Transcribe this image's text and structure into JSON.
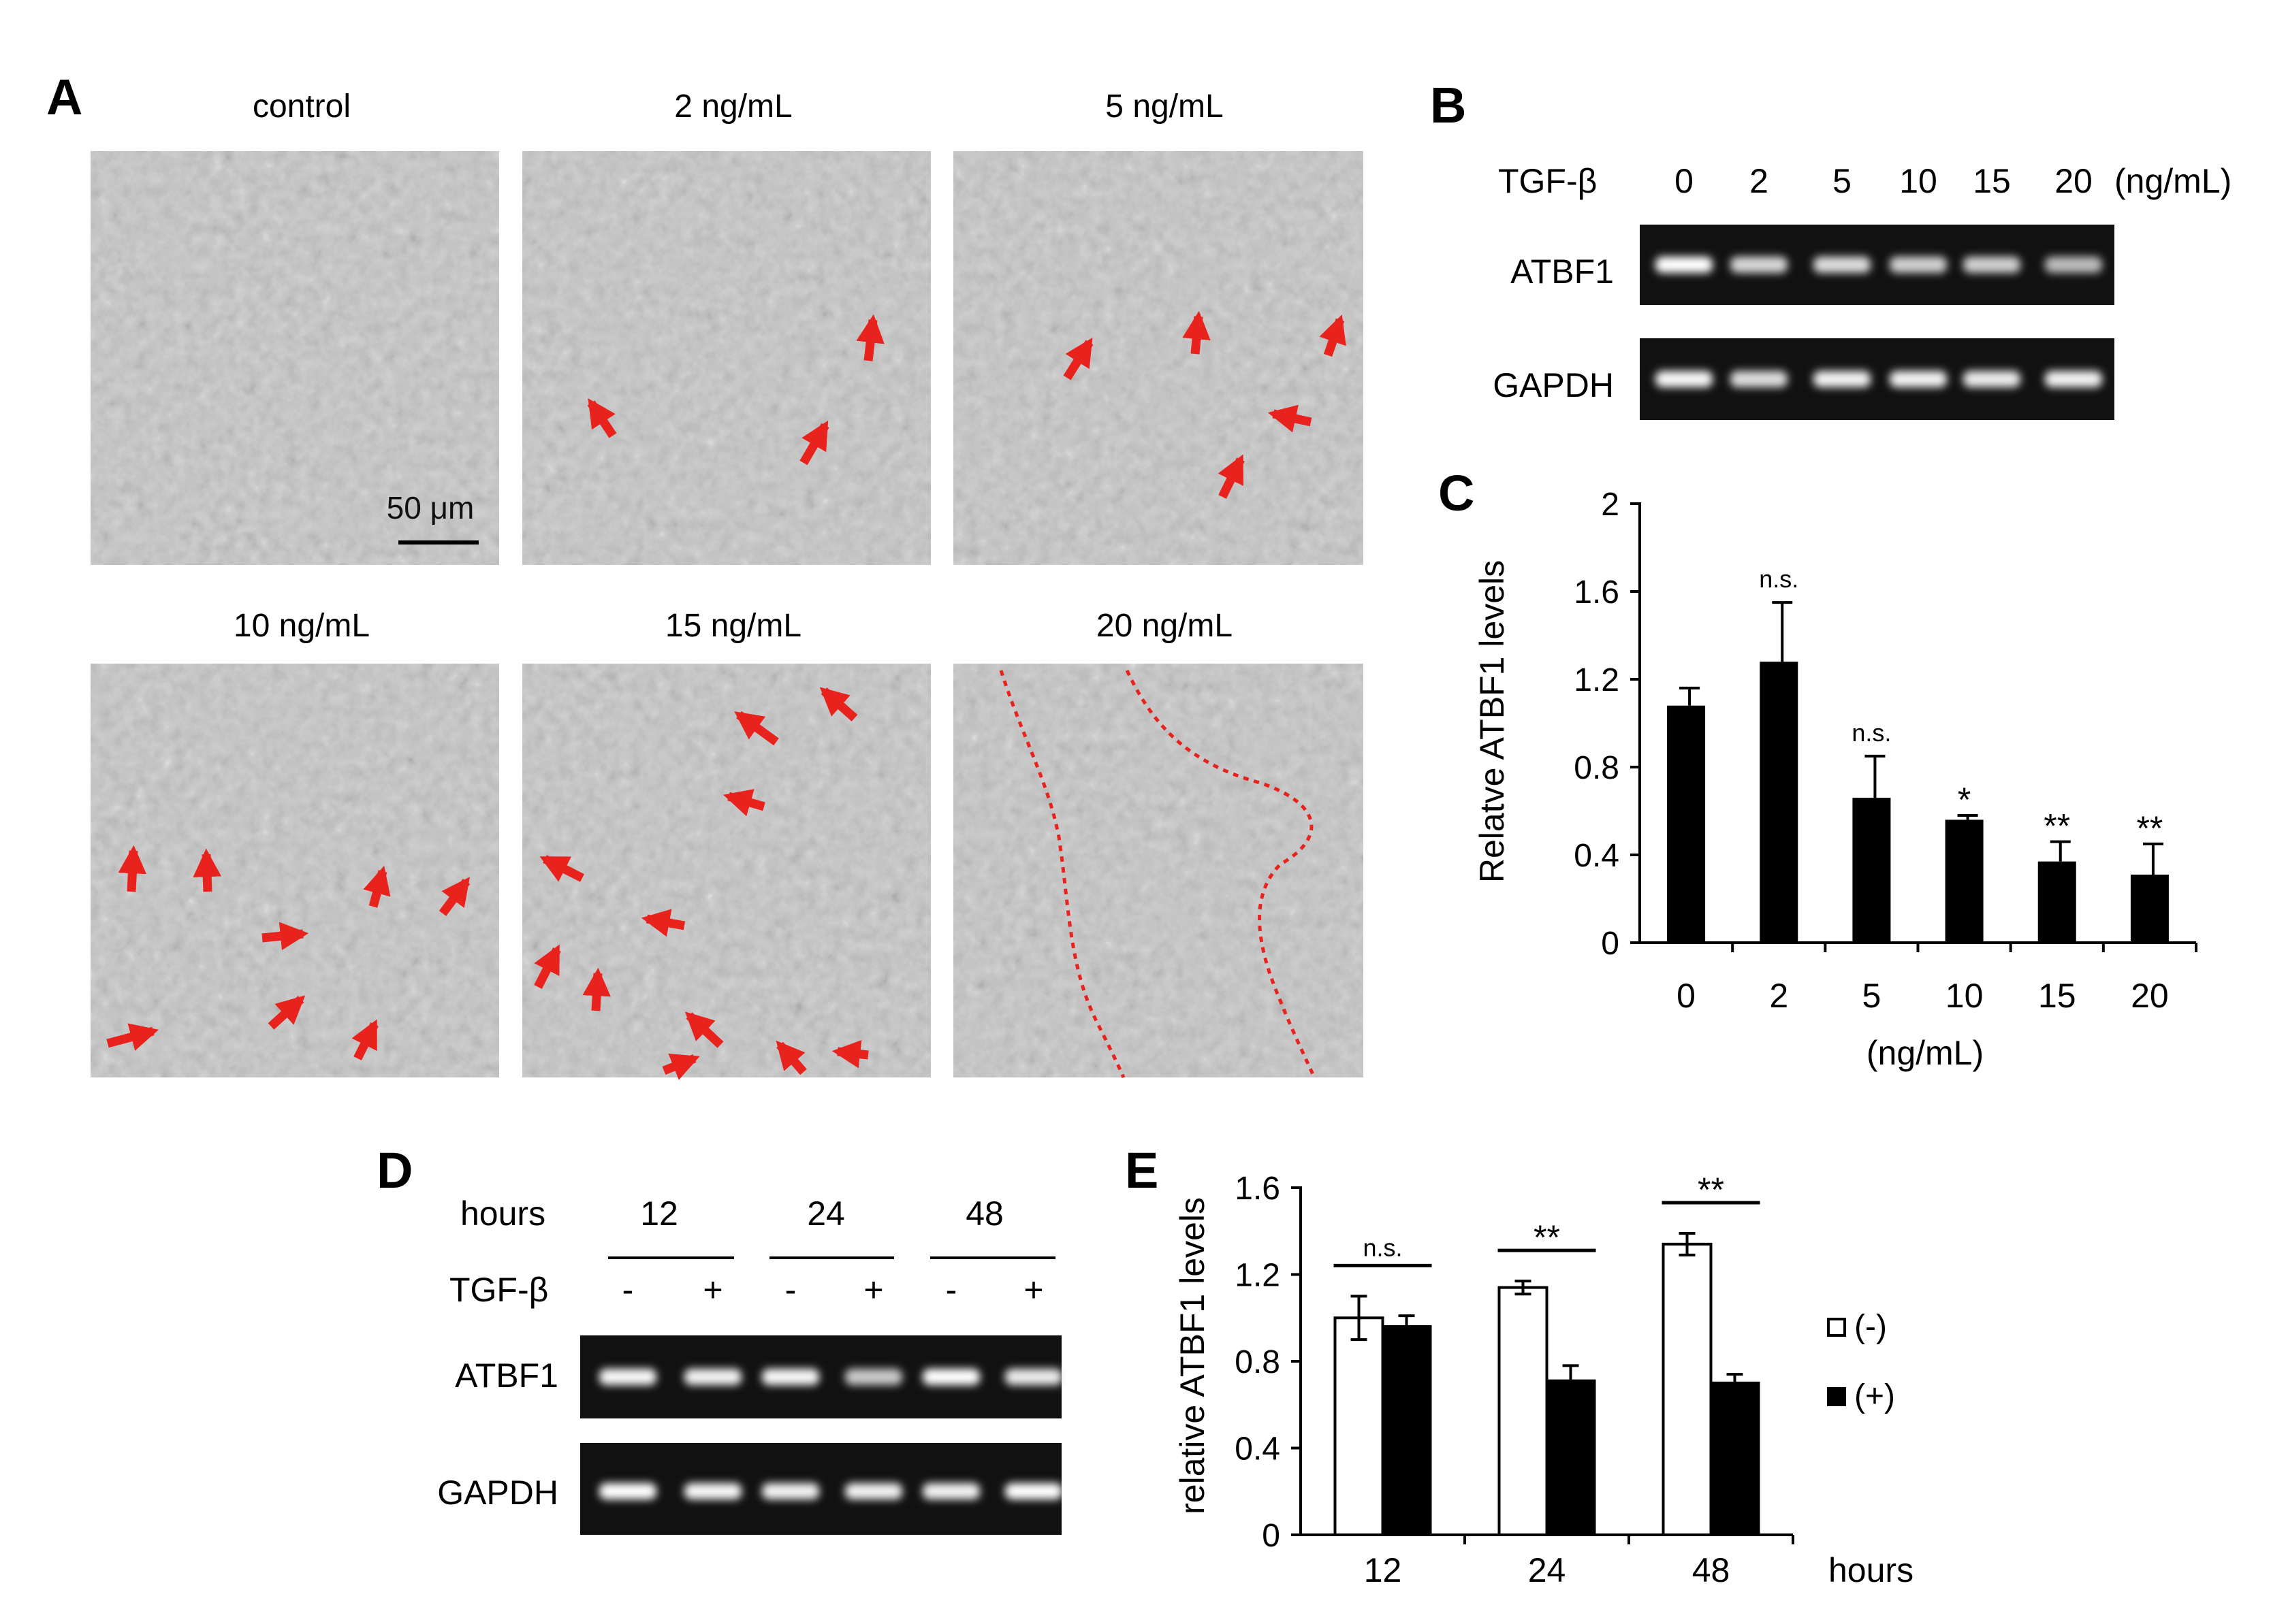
{
  "panel_a": {
    "letter": "A",
    "images": [
      {
        "label": "control"
      },
      {
        "label": "2 ng/mL"
      },
      {
        "label": "5 ng/mL"
      },
      {
        "label": "10 ng/mL"
      },
      {
        "label": "15 ng/mL"
      },
      {
        "label": "20 ng/mL"
      }
    ],
    "scale_bar": "50 μm",
    "colors": {
      "arrow": "#e8221c",
      "cells_bg": "#7f7f7f"
    }
  },
  "panel_b": {
    "letter": "B",
    "header_label": "TGF-β",
    "doses": [
      "0",
      "2",
      "5",
      "10",
      "15",
      "20"
    ],
    "unit": "(ng/mL)",
    "rows": [
      {
        "label": "ATBF1",
        "band_strength": [
          1.0,
          0.7,
          0.75,
          0.65,
          0.65,
          0.5
        ]
      },
      {
        "label": "GAPDH",
        "band_strength": [
          0.95,
          0.75,
          0.9,
          0.9,
          0.85,
          0.9
        ]
      }
    ]
  },
  "chart_data": [
    {
      "panel": "C",
      "type": "bar",
      "categories": [
        "0",
        "2",
        "5",
        "10",
        "15",
        "20"
      ],
      "values": [
        1.08,
        1.28,
        0.66,
        0.56,
        0.37,
        0.31
      ],
      "errors": [
        0.08,
        0.27,
        0.19,
        0.02,
        0.09,
        0.14
      ],
      "significance": [
        "",
        "n.s.",
        "n.s.",
        "*",
        "**",
        "**"
      ],
      "ylabel": "Relatve ATBF1 levels",
      "xlabel": "(ng/mL)",
      "ylim": [
        0,
        2
      ],
      "yticks": [
        "0",
        "0.4",
        "0.8",
        "1.2",
        "1.6",
        "2"
      ],
      "color": "#000000"
    },
    {
      "panel": "E",
      "type": "bar",
      "categories": [
        "12",
        "24",
        "48"
      ],
      "series": [
        {
          "name": "(-)",
          "values": [
            1.0,
            1.14,
            1.34
          ],
          "errors": [
            0.1,
            0.03,
            0.05
          ],
          "color": "#ffffff"
        },
        {
          "name": "(+)",
          "values": [
            0.96,
            0.71,
            0.7
          ],
          "errors": [
            0.05,
            0.07,
            0.04
          ],
          "color": "#000000"
        }
      ],
      "significance": [
        "n.s.",
        "**",
        "**"
      ],
      "ylabel": "relative ATBF1 levels",
      "xlabel": "hours",
      "ylim": [
        0,
        1.6
      ],
      "yticks": [
        "0",
        "0.4",
        "0.8",
        "1.2",
        "1.6"
      ],
      "legend": "right"
    }
  ],
  "panel_c": {
    "letter": "C"
  },
  "panel_d": {
    "letter": "D",
    "hours_label": "hours",
    "timepoints": [
      "12",
      "24",
      "48"
    ],
    "tgf_label": "TGF-β",
    "treatment": [
      "-",
      "+",
      "-",
      "+",
      "-",
      "+"
    ],
    "rows": [
      {
        "label": "ATBF1",
        "band_strength": [
          0.95,
          0.9,
          0.95,
          0.6,
          1.0,
          0.85
        ]
      },
      {
        "label": "GAPDH",
        "band_strength": [
          1.0,
          0.95,
          0.9,
          0.9,
          0.9,
          1.0
        ]
      }
    ]
  },
  "panel_e": {
    "letter": "E"
  }
}
